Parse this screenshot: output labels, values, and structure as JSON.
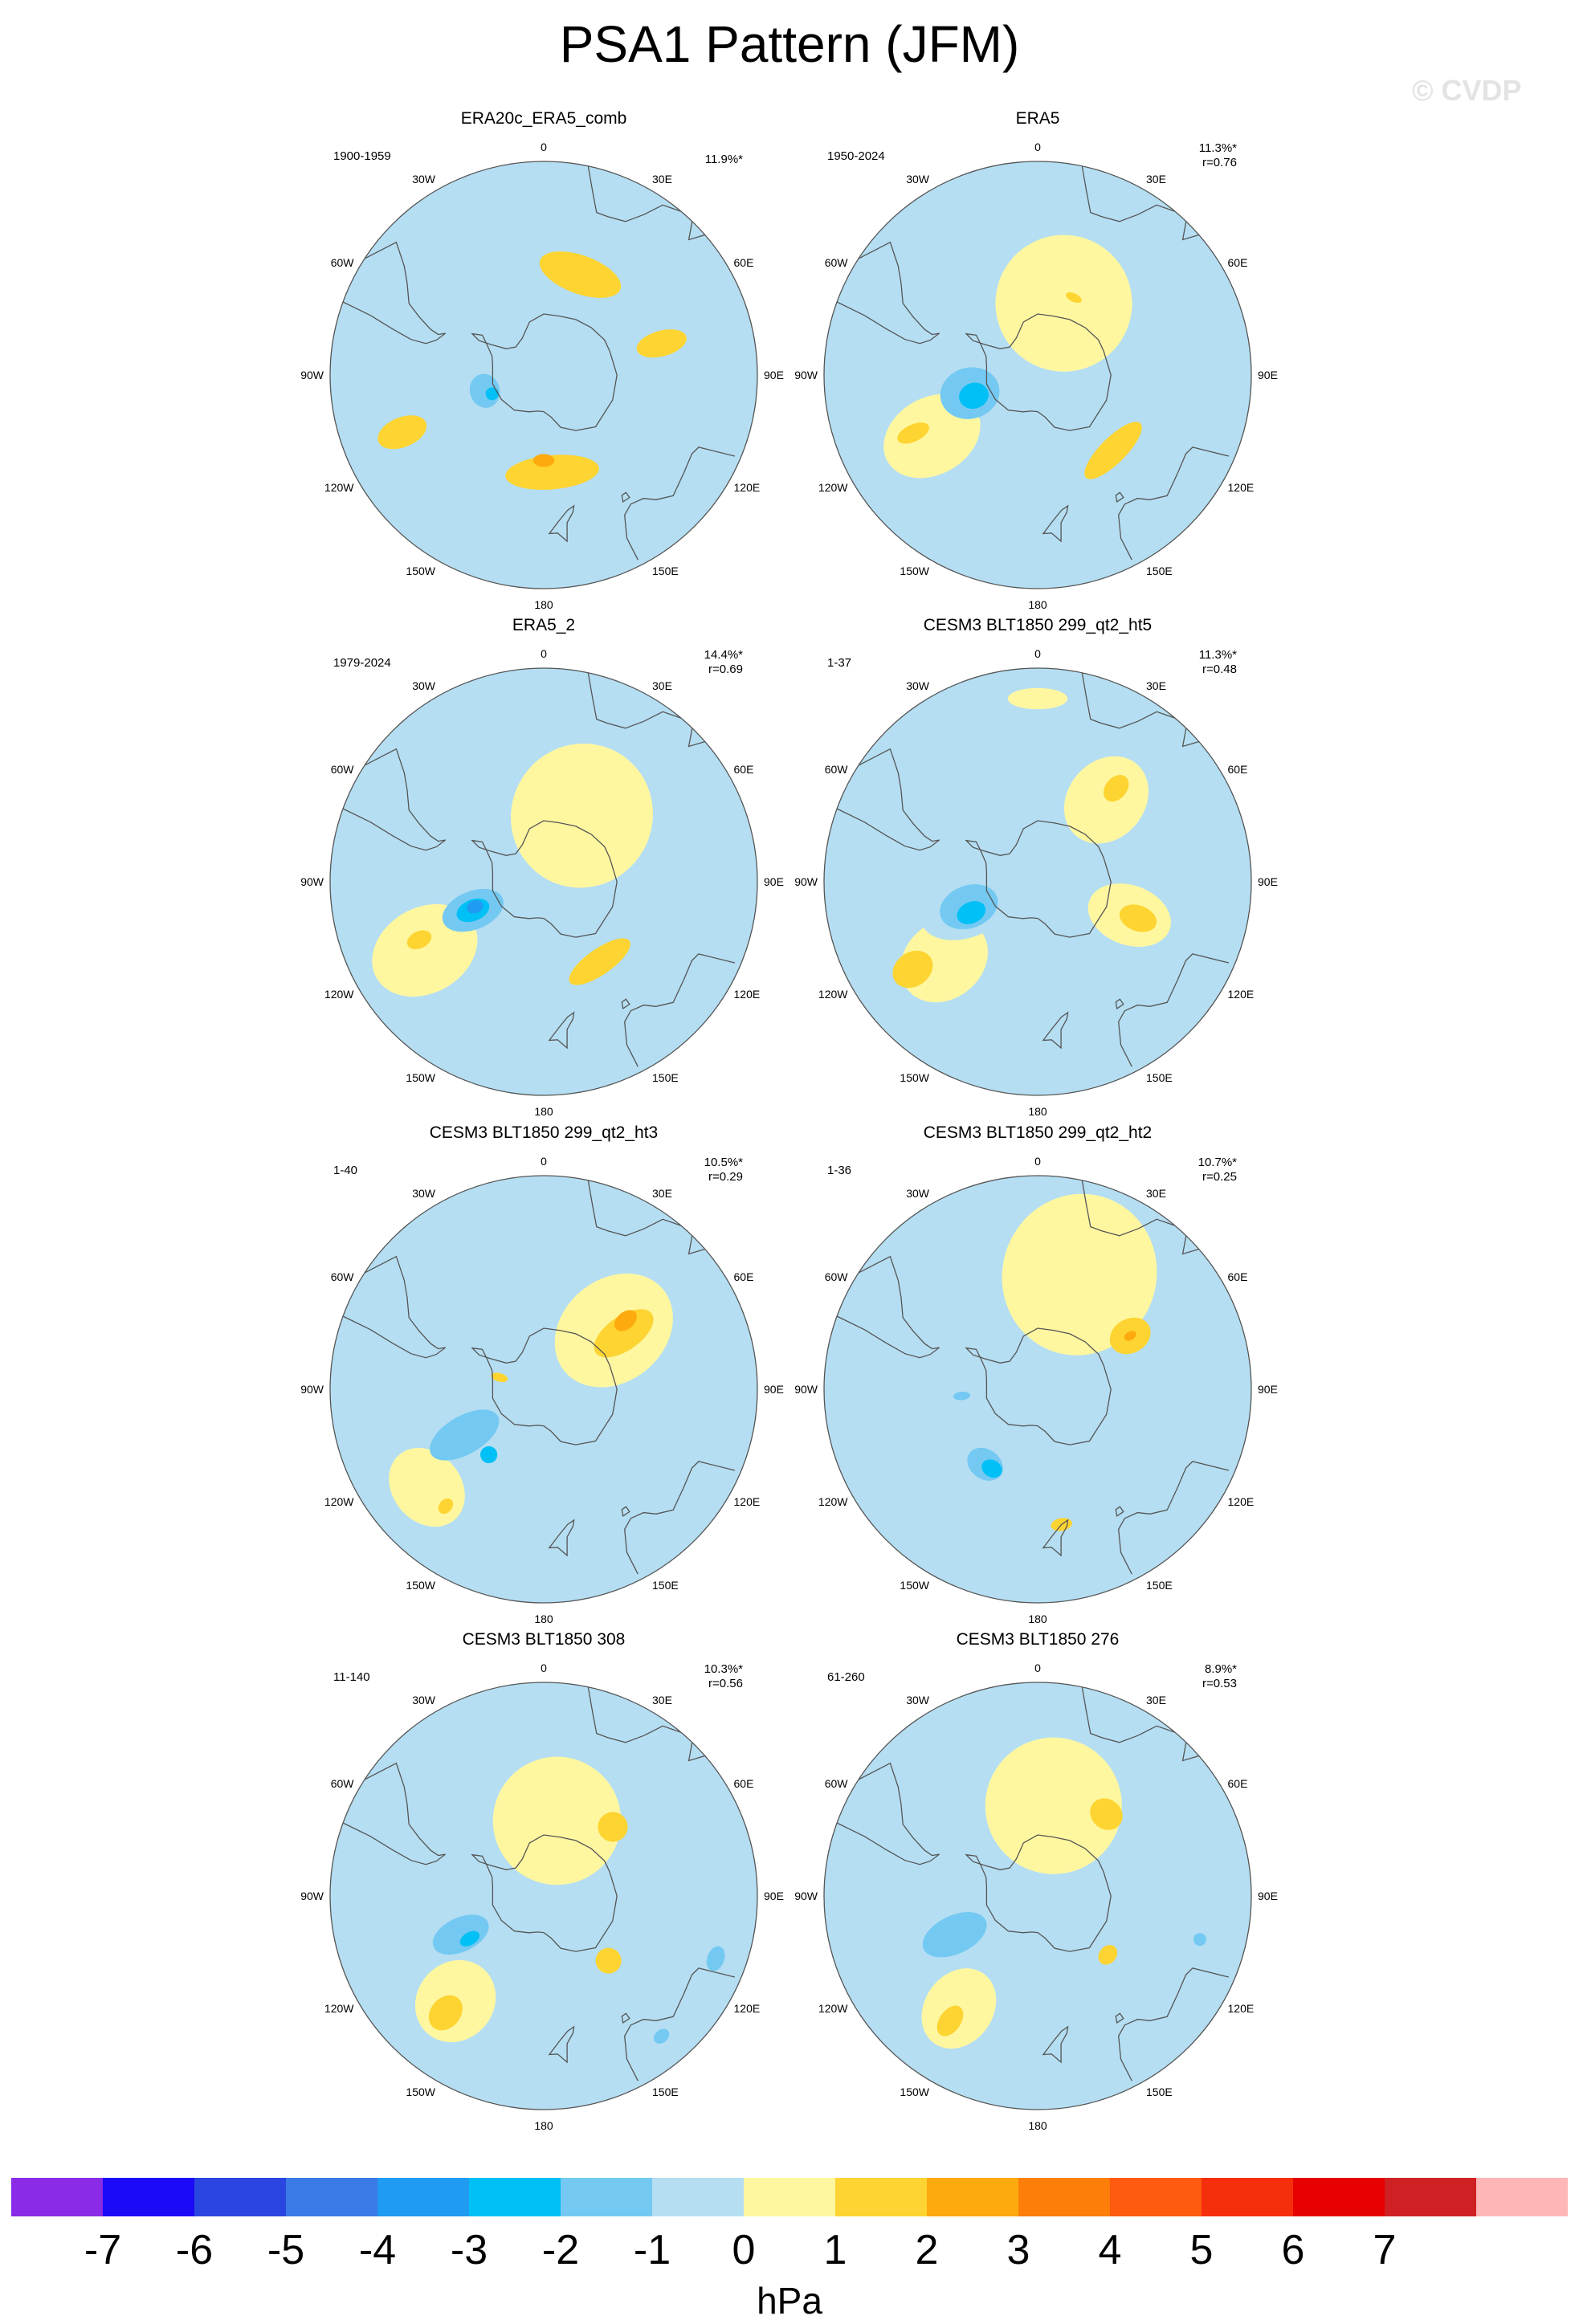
{
  "title": "PSA1 Pattern (JFM)",
  "watermark": "© CVDP",
  "unit": "hPa",
  "colors": {
    "neg7": "#8a2be8",
    "neg6": "#1a0af5",
    "neg5": "#2b45e0",
    "neg4": "#3a7ae6",
    "neg3": "#1f9bf2",
    "neg2": "#00c0f5",
    "neg1": "#74c9f2",
    "neg0": "#b5def2",
    "pos0": "#fff7a0",
    "pos1": "#fdd431",
    "pos2": "#fdaa0e",
    "pos3": "#fd7f0a",
    "pos4": "#fe5a10",
    "pos5": "#f52e0c",
    "pos6": "#e60000",
    "pos7": "#cf2024",
    "over": "#ffb6b6"
  },
  "colorbar": {
    "labels": [
      "-7",
      "-6",
      "-5",
      "-4",
      "-3",
      "-2",
      "-1",
      "0",
      "1",
      "2",
      "3",
      "4",
      "5",
      "6",
      "7"
    ]
  },
  "map_labels": {
    "top": "0",
    "bottom": "180",
    "e30": "30E",
    "e60": "60E",
    "e90": "90E",
    "e120": "120E",
    "e150": "150E",
    "w30": "30W",
    "w60": "60W",
    "w90": "90W",
    "w120": "120W",
    "w150": "150W"
  },
  "panels": [
    {
      "title": "ERA20c_ERA5_comb",
      "period": "1900-1959",
      "pct": "11.9%*",
      "r": "",
      "anomalies": [
        {
          "sign": "pos",
          "level": 1,
          "lon": 20,
          "lat": -55,
          "rx": 0.2,
          "ry": 0.09
        },
        {
          "sign": "pos",
          "level": 1,
          "lon": 175,
          "lat": -58,
          "rx": 0.22,
          "ry": 0.08
        },
        {
          "sign": "pos",
          "level": 2,
          "lon": 180,
          "lat": -62,
          "rx": 0.05,
          "ry": 0.03
        },
        {
          "sign": "pos",
          "level": 1,
          "lon": -112,
          "lat": -40,
          "rx": 0.07,
          "ry": 0.12
        },
        {
          "sign": "pos",
          "level": 1,
          "lon": 75,
          "lat": -50,
          "rx": 0.06,
          "ry": 0.12
        },
        {
          "sign": "neg",
          "level": 0,
          "lon": -100,
          "lat": -70,
          "rx": 0.13,
          "ry": 0.11
        },
        {
          "sign": "neg",
          "level": 1,
          "lon": -105,
          "lat": -70,
          "rx": 0.08,
          "ry": 0.07
        },
        {
          "sign": "neg",
          "level": 2,
          "lon": -110,
          "lat": -72,
          "rx": 0.03,
          "ry": 0.03
        },
        {
          "sign": "neg",
          "level": 0,
          "lon": 165,
          "lat": -25,
          "rx": 0.14,
          "ry": 0.06
        }
      ]
    },
    {
      "title": "ERA5",
      "period": "1950-2024",
      "pct": "11.3%*",
      "r": "r=0.76",
      "anomalies": [
        {
          "sign": "pos",
          "level": 0,
          "lon": 20,
          "lat": -65,
          "rx": 0.32,
          "ry": 0.32
        },
        {
          "sign": "pos",
          "level": 0,
          "lon": -120,
          "lat": -50,
          "rx": 0.18,
          "ry": 0.24
        },
        {
          "sign": "pos",
          "level": 1,
          "lon": -115,
          "lat": -45,
          "rx": 0.04,
          "ry": 0.08
        },
        {
          "sign": "pos",
          "level": 1,
          "lon": 135,
          "lat": -55,
          "rx": 0.18,
          "ry": 0.06
        },
        {
          "sign": "pos",
          "level": 1,
          "lon": 25,
          "lat": -62,
          "rx": 0.04,
          "ry": 0.02
        },
        {
          "sign": "neg",
          "level": 1,
          "lon": -105,
          "lat": -67,
          "rx": 0.12,
          "ry": 0.14
        },
        {
          "sign": "neg",
          "level": 2,
          "lon": -108,
          "lat": -68,
          "rx": 0.06,
          "ry": 0.07
        },
        {
          "sign": "neg",
          "level": 2,
          "lon": -110,
          "lat": -70,
          "rx": 0.03,
          "ry": 0.04
        }
      ]
    },
    {
      "title": "ERA5_2",
      "period": "1979-2024",
      "pct": "14.4%*",
      "r": "r=0.69",
      "anomalies": [
        {
          "sign": "pos",
          "level": 0,
          "lon": 30,
          "lat": -65,
          "rx": 0.33,
          "ry": 0.34
        },
        {
          "sign": "pos",
          "level": 0,
          "lon": -120,
          "lat": -45,
          "rx": 0.2,
          "ry": 0.26
        },
        {
          "sign": "pos",
          "level": 1,
          "lon": -115,
          "lat": -45,
          "rx": 0.04,
          "ry": 0.06
        },
        {
          "sign": "pos",
          "level": 1,
          "lon": 145,
          "lat": -58,
          "rx": 0.17,
          "ry": 0.06
        },
        {
          "sign": "neg",
          "level": 1,
          "lon": -112,
          "lat": -65,
          "rx": 0.09,
          "ry": 0.15
        },
        {
          "sign": "neg",
          "level": 2,
          "lon": -112,
          "lat": -65,
          "rx": 0.05,
          "ry": 0.08
        },
        {
          "sign": "neg",
          "level": 3,
          "lon": -110,
          "lat": -66,
          "rx": 0.03,
          "ry": 0.04
        }
      ]
    },
    {
      "title": "CESM3 BLT1850 299_qt2_ht5",
      "period": "1-37",
      "pct": "11.3%*",
      "r": "r=0.48",
      "anomalies": [
        {
          "sign": "pos",
          "level": 0,
          "lon": 40,
          "lat": -55,
          "rx": 0.18,
          "ry": 0.22
        },
        {
          "sign": "pos",
          "level": 1,
          "lon": 40,
          "lat": -50,
          "rx": 0.05,
          "ry": 0.07
        },
        {
          "sign": "pos",
          "level": 0,
          "lon": 110,
          "lat": -58,
          "rx": 0.14,
          "ry": 0.2
        },
        {
          "sign": "pos",
          "level": 1,
          "lon": 110,
          "lat": -55,
          "rx": 0.06,
          "ry": 0.09
        },
        {
          "sign": "pos",
          "level": 0,
          "lon": -130,
          "lat": -50,
          "rx": 0.18,
          "ry": 0.22
        },
        {
          "sign": "pos",
          "level": 1,
          "lon": -125,
          "lat": -40,
          "rx": 0.08,
          "ry": 0.1
        },
        {
          "sign": "pos",
          "level": 0,
          "lon": 0,
          "lat": -30,
          "rx": 0.14,
          "ry": 0.05
        },
        {
          "sign": "neg",
          "level": 0,
          "lon": -110,
          "lat": -65,
          "rx": 0.14,
          "ry": 0.22
        },
        {
          "sign": "neg",
          "level": 1,
          "lon": -110,
          "lat": -66,
          "rx": 0.1,
          "ry": 0.14
        },
        {
          "sign": "neg",
          "level": 2,
          "lon": -115,
          "lat": -66,
          "rx": 0.05,
          "ry": 0.07
        }
      ]
    },
    {
      "title": "CESM3 BLT1850 299_qt2_ht3",
      "period": "1-40",
      "pct": "10.5%*",
      "r": "r=0.29",
      "anomalies": [
        {
          "sign": "pos",
          "level": 0,
          "lon": 50,
          "lat": -60,
          "rx": 0.24,
          "ry": 0.3
        },
        {
          "sign": "pos",
          "level": 1,
          "lon": 55,
          "lat": -58,
          "rx": 0.08,
          "ry": 0.16
        },
        {
          "sign": "pos",
          "level": 2,
          "lon": 50,
          "lat": -55,
          "rx": 0.04,
          "ry": 0.06
        },
        {
          "sign": "pos",
          "level": 0,
          "lon": -130,
          "lat": -40,
          "rx": 0.2,
          "ry": 0.16
        },
        {
          "sign": "pos",
          "level": 1,
          "lon": -140,
          "lat": -40,
          "rx": 0.03,
          "ry": 0.04
        },
        {
          "sign": "pos",
          "level": 1,
          "lon": -75,
          "lat": -75,
          "rx": 0.02,
          "ry": 0.04
        },
        {
          "sign": "neg",
          "level": 1,
          "lon": -120,
          "lat": -60,
          "rx": 0.09,
          "ry": 0.18
        },
        {
          "sign": "neg",
          "level": 2,
          "lon": -140,
          "lat": -62,
          "rx": 0.04,
          "ry": 0.04
        }
      ]
    },
    {
      "title": "CESM3 BLT1850 299_qt2_ht2",
      "period": "1-36",
      "pct": "10.7%*",
      "r": "r=0.25",
      "anomalies": [
        {
          "sign": "pos",
          "level": 0,
          "lon": 20,
          "lat": -50,
          "rx": 0.36,
          "ry": 0.38
        },
        {
          "sign": "pos",
          "level": 1,
          "lon": 60,
          "lat": -55,
          "rx": 0.08,
          "ry": 0.1
        },
        {
          "sign": "pos",
          "level": 2,
          "lon": 60,
          "lat": -55,
          "rx": 0.02,
          "ry": 0.03
        },
        {
          "sign": "pos",
          "level": 1,
          "lon": 170,
          "lat": -45,
          "rx": 0.05,
          "ry": 0.03
        },
        {
          "sign": "neg",
          "level": 1,
          "lon": -145,
          "lat": -60,
          "rx": 0.09,
          "ry": 0.07
        },
        {
          "sign": "neg",
          "level": 2,
          "lon": -150,
          "lat": -60,
          "rx": 0.05,
          "ry": 0.04
        },
        {
          "sign": "neg",
          "level": 1,
          "lon": -95,
          "lat": -65,
          "rx": 0.02,
          "ry": 0.04
        }
      ]
    },
    {
      "title": "CESM3 BLT1850 308",
      "period": "11-140",
      "pct": "10.3%*",
      "r": "r=0.56",
      "anomalies": [
        {
          "sign": "pos",
          "level": 0,
          "lon": 10,
          "lat": -65,
          "rx": 0.3,
          "ry": 0.3
        },
        {
          "sign": "pos",
          "level": 0,
          "lon": -140,
          "lat": -45,
          "rx": 0.18,
          "ry": 0.2
        },
        {
          "sign": "pos",
          "level": 1,
          "lon": -140,
          "lat": -40,
          "rx": 0.07,
          "ry": 0.09
        },
        {
          "sign": "pos",
          "level": 1,
          "lon": 45,
          "lat": -58,
          "rx": 0.07,
          "ry": 0.07
        },
        {
          "sign": "pos",
          "level": 1,
          "lon": 135,
          "lat": -60,
          "rx": 0.06,
          "ry": 0.06
        },
        {
          "sign": "neg",
          "level": 1,
          "lon": -115,
          "lat": -60,
          "rx": 0.08,
          "ry": 0.14
        },
        {
          "sign": "neg",
          "level": 2,
          "lon": -120,
          "lat": -62,
          "rx": 0.03,
          "ry": 0.05
        },
        {
          "sign": "neg",
          "level": 1,
          "lon": 110,
          "lat": -30,
          "rx": 0.06,
          "ry": 0.04
        },
        {
          "sign": "neg",
          "level": 1,
          "lon": 140,
          "lat": -30,
          "rx": 0.04,
          "ry": 0.03
        }
      ]
    },
    {
      "title": "CESM3 BLT1850 276",
      "period": "61-260",
      "pct": "8.9%*",
      "r": "r=0.53",
      "anomalies": [
        {
          "sign": "pos",
          "level": 0,
          "lon": 10,
          "lat": -60,
          "rx": 0.32,
          "ry": 0.32
        },
        {
          "sign": "pos",
          "level": 0,
          "lon": -145,
          "lat": -45,
          "rx": 0.16,
          "ry": 0.2
        },
        {
          "sign": "pos",
          "level": 1,
          "lon": -145,
          "lat": -40,
          "rx": 0.05,
          "ry": 0.08
        },
        {
          "sign": "pos",
          "level": 1,
          "lon": 40,
          "lat": -55,
          "rx": 0.08,
          "ry": 0.07
        },
        {
          "sign": "pos",
          "level": 1,
          "lon": 130,
          "lat": -60,
          "rx": 0.05,
          "ry": 0.04
        },
        {
          "sign": "neg",
          "level": 1,
          "lon": -115,
          "lat": -60,
          "rx": 0.09,
          "ry": 0.16
        },
        {
          "sign": "neg",
          "level": 1,
          "lon": 105,
          "lat": -35,
          "rx": 0.03,
          "ry": 0.03
        }
      ]
    }
  ]
}
